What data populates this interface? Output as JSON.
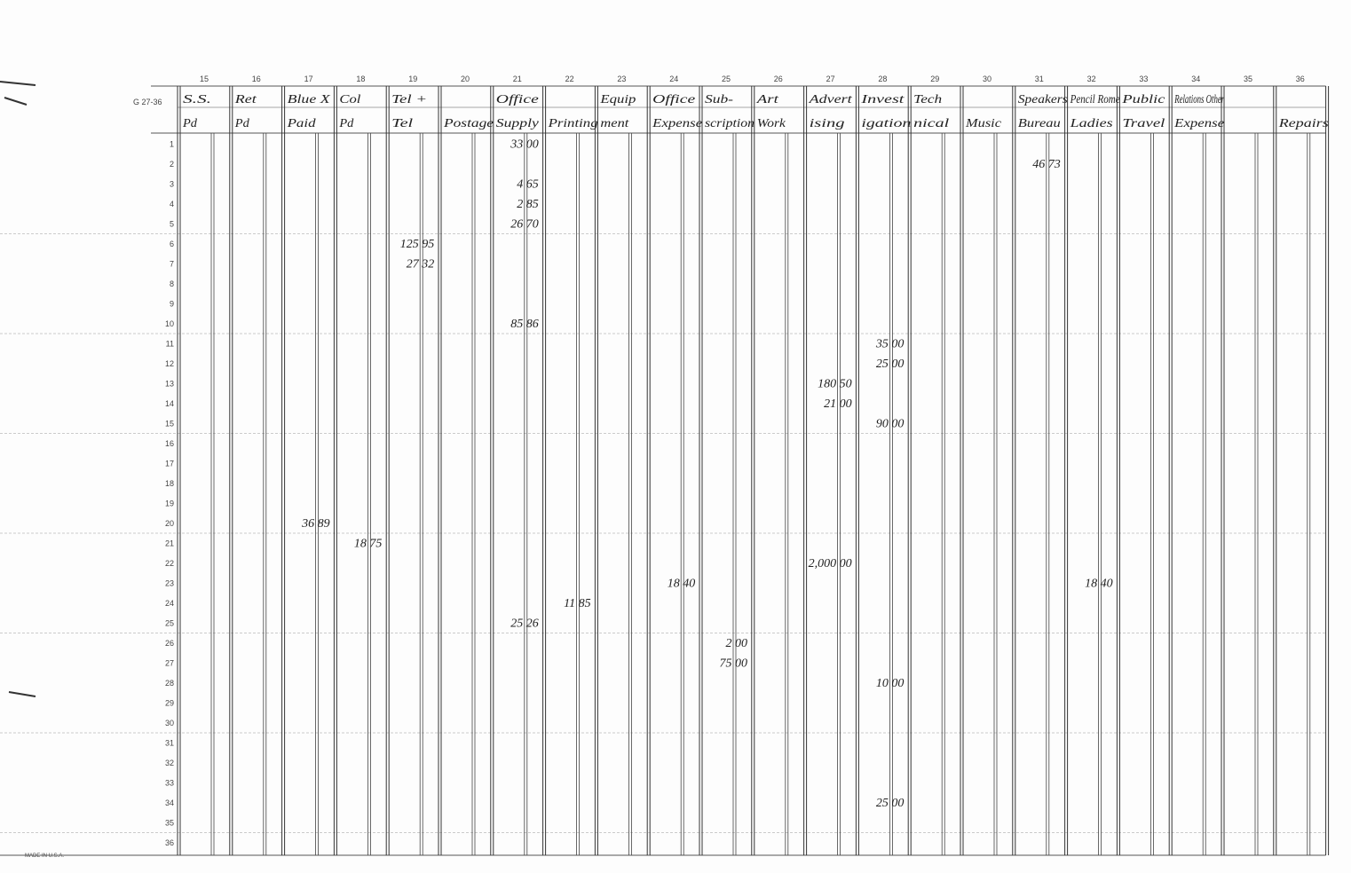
{
  "form_code": "G 27-36",
  "imprint": "MADE IN U.S.A.",
  "row_numbers": [
    1,
    2,
    3,
    4,
    5,
    6,
    7,
    8,
    9,
    10,
    11,
    12,
    13,
    14,
    15,
    16,
    17,
    18,
    19,
    20,
    21,
    22,
    23,
    24,
    25,
    26,
    27,
    28,
    29,
    30,
    31,
    32,
    33,
    34,
    35,
    36
  ],
  "columns": [
    {
      "number": 15,
      "lines": [
        "S.S.",
        "Pd"
      ],
      "entries": {}
    },
    {
      "number": 16,
      "lines": [
        "Ret",
        "Pd"
      ],
      "entries": {}
    },
    {
      "number": 17,
      "lines": [
        "Blue X",
        "Paid"
      ],
      "entries": {
        "20": "36 89"
      }
    },
    {
      "number": 18,
      "lines": [
        "Col",
        "Pd"
      ],
      "entries": {
        "21": "18 75"
      }
    },
    {
      "number": 19,
      "lines": [
        "Tel +",
        "Tel"
      ],
      "entries": {
        "6": "125 95",
        "7": "27 32"
      }
    },
    {
      "number": 20,
      "lines": [
        "Postage"
      ],
      "entries": {}
    },
    {
      "number": 21,
      "lines": [
        "Office",
        "Supply"
      ],
      "entries": {
        "1": "33 00",
        "3": "4 65",
        "4": "2 85",
        "5": "26 70",
        "10": "85 86",
        "25": "25 26"
      }
    },
    {
      "number": 22,
      "lines": [
        "Printing"
      ],
      "entries": {
        "24": "11 85"
      }
    },
    {
      "number": 23,
      "lines": [
        "Equip",
        "ment"
      ],
      "entries": {}
    },
    {
      "number": 24,
      "lines": [
        "Office",
        "Expense"
      ],
      "entries": {
        "23": "18 40"
      }
    },
    {
      "number": 25,
      "lines": [
        "Sub-",
        "scription"
      ],
      "entries": {
        "26": "2 00",
        "27": "75 00"
      }
    },
    {
      "number": 26,
      "lines": [
        "Art",
        "Work"
      ],
      "entries": {}
    },
    {
      "number": 27,
      "lines": [
        "Advert",
        "ising"
      ],
      "entries": {
        "13": "180 50",
        "14": "21 00",
        "22": "2,000 00"
      }
    },
    {
      "number": 28,
      "lines": [
        "Invest",
        "igation"
      ],
      "entries": {
        "11": "35 00",
        "12": "25 00",
        "15": "90 00",
        "28": "10 00",
        "34": "25 00"
      }
    },
    {
      "number": 29,
      "lines": [
        "Tech",
        "nical"
      ],
      "entries": {}
    },
    {
      "number": 30,
      "lines": [
        "Music"
      ],
      "entries": {}
    },
    {
      "number": 31,
      "lines": [
        "Speakers",
        "Bureau"
      ],
      "entries": {
        "2": "46 73"
      }
    },
    {
      "number": 32,
      "lines": [
        "Pencil Rome",
        "Ladies"
      ],
      "entries": {
        "23": "18 40"
      }
    },
    {
      "number": 33,
      "lines": [
        "Public",
        "Travel"
      ],
      "entries": {}
    },
    {
      "number": 34,
      "lines": [
        "Relations Other",
        "Expense"
      ],
      "entries": {}
    },
    {
      "number": 35,
      "lines": [],
      "entries": {}
    },
    {
      "number": 36,
      "lines": [
        "Repairs"
      ],
      "entries": {}
    }
  ]
}
